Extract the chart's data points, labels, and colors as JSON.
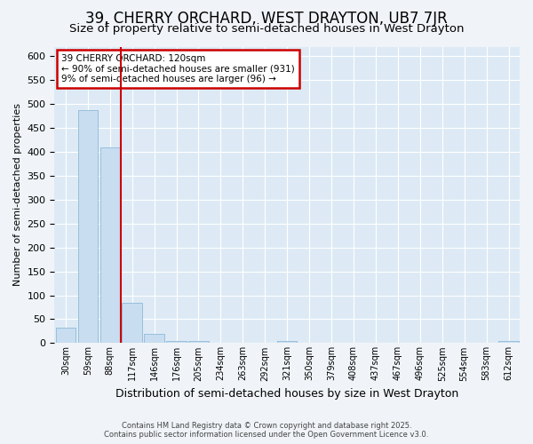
{
  "title": "39, CHERRY ORCHARD, WEST DRAYTON, UB7 7JR",
  "subtitle": "Size of property relative to semi-detached houses in West Drayton",
  "xlabel": "Distribution of semi-detached houses by size in West Drayton",
  "ylabel": "Number of semi-detached properties",
  "categories": [
    "30sqm",
    "59sqm",
    "88sqm",
    "117sqm",
    "146sqm",
    "176sqm",
    "205sqm",
    "234sqm",
    "263sqm",
    "292sqm",
    "321sqm",
    "350sqm",
    "379sqm",
    "408sqm",
    "437sqm",
    "467sqm",
    "496sqm",
    "525sqm",
    "554sqm",
    "583sqm",
    "612sqm"
  ],
  "values": [
    32,
    487,
    410,
    84,
    20,
    5,
    4,
    0,
    0,
    0,
    5,
    0,
    0,
    0,
    0,
    0,
    0,
    0,
    0,
    0,
    4
  ],
  "bar_color": "#c8ddf0",
  "bar_edge_color": "#90b8d8",
  "vline_color": "#cc0000",
  "vline_x_index": 2.5,
  "annotation_title": "39 CHERRY ORCHARD: 120sqm",
  "annotation_line1": "← 90% of semi-detached houses are smaller (931)",
  "annotation_line2": "9% of semi-detached houses are larger (96) →",
  "annotation_box_color": "#cc0000",
  "ylim": [
    0,
    620
  ],
  "yticks": [
    0,
    50,
    100,
    150,
    200,
    250,
    300,
    350,
    400,
    450,
    500,
    550,
    600
  ],
  "footer_line1": "Contains HM Land Registry data © Crown copyright and database right 2025.",
  "footer_line2": "Contains public sector information licensed under the Open Government Licence v3.0.",
  "bg_color": "#f0f4f8",
  "plot_bg_color": "#ddeaf5",
  "title_fontsize": 12,
  "subtitle_fontsize": 9.5,
  "xlabel_fontsize": 9,
  "ylabel_fontsize": 8
}
